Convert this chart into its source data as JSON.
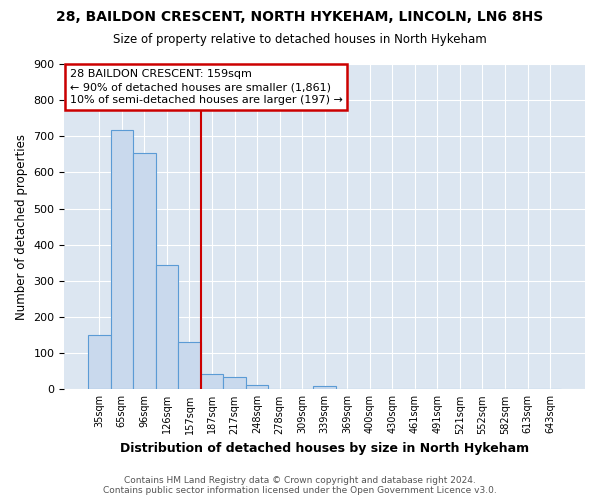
{
  "title1": "28, BAILDON CRESCENT, NORTH HYKEHAM, LINCOLN, LN6 8HS",
  "title2": "Size of property relative to detached houses in North Hykeham",
  "xlabel": "Distribution of detached houses by size in North Hykeham",
  "ylabel": "Number of detached properties",
  "categories": [
    "35sqm",
    "65sqm",
    "96sqm",
    "126sqm",
    "157sqm",
    "187sqm",
    "217sqm",
    "248sqm",
    "278sqm",
    "309sqm",
    "339sqm",
    "369sqm",
    "400sqm",
    "430sqm",
    "461sqm",
    "491sqm",
    "521sqm",
    "552sqm",
    "582sqm",
    "613sqm",
    "643sqm"
  ],
  "values": [
    150,
    718,
    653,
    343,
    130,
    42,
    33,
    13,
    0,
    0,
    8,
    0,
    0,
    0,
    0,
    0,
    0,
    0,
    0,
    0,
    0
  ],
  "bar_color": "#c9d9ed",
  "bar_edge_color": "#5b9bd5",
  "background_color": "#dce6f1",
  "grid_color": "#ffffff",
  "red_line_x": 4.5,
  "annotation_line1": "28 BAILDON CRESCENT: 159sqm",
  "annotation_line2": "← 90% of detached houses are smaller (1,861)",
  "annotation_line3": "10% of semi-detached houses are larger (197) →",
  "annotation_box_color": "#ffffff",
  "annotation_box_edge": "#cc0000",
  "footer": "Contains HM Land Registry data © Crown copyright and database right 2024.\nContains public sector information licensed under the Open Government Licence v3.0.",
  "ylim": [
    0,
    900
  ],
  "yticks": [
    0,
    100,
    200,
    300,
    400,
    500,
    600,
    700,
    800,
    900
  ],
  "fig_bg": "#ffffff"
}
